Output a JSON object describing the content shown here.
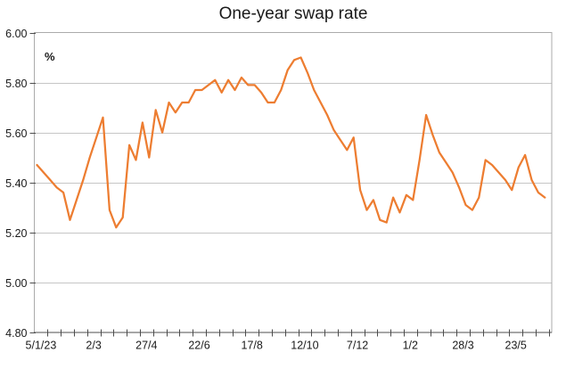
{
  "chart_data": {
    "type": "line",
    "title": "One-year swap rate",
    "unit_label": "%",
    "x_tick_labels": [
      "5/1/23",
      "2/3",
      "27/4",
      "22/6",
      "17/8",
      "12/10",
      "7/12",
      "1/2",
      "28/3",
      "23/5"
    ],
    "y_tick_labels": [
      "6.00",
      "5.80",
      "5.60",
      "5.40",
      "5.20",
      "5.00",
      "4.80"
    ],
    "ylim": [
      4.8,
      6.0
    ],
    "y_step": 0.2,
    "grid": "horizontal-major",
    "legend": "none",
    "series": [
      {
        "name": "One-year swap rate",
        "color": "#ED7D31",
        "values": [
          5.47,
          5.44,
          5.41,
          5.38,
          5.36,
          5.25,
          5.33,
          5.41,
          5.5,
          5.58,
          5.66,
          5.29,
          5.22,
          5.26,
          5.55,
          5.49,
          5.64,
          5.5,
          5.69,
          5.6,
          5.72,
          5.68,
          5.72,
          5.72,
          5.77,
          5.77,
          5.79,
          5.81,
          5.76,
          5.81,
          5.77,
          5.82,
          5.79,
          5.79,
          5.76,
          5.72,
          5.72,
          5.77,
          5.85,
          5.89,
          5.9,
          5.84,
          5.77,
          5.72,
          5.67,
          5.61,
          5.57,
          5.53,
          5.58,
          5.37,
          5.29,
          5.33,
          5.25,
          5.24,
          5.34,
          5.28,
          5.35,
          5.33,
          5.49,
          5.67,
          5.59,
          5.52,
          5.48,
          5.44,
          5.38,
          5.31,
          5.29,
          5.34,
          5.49,
          5.47,
          5.44,
          5.41,
          5.37,
          5.46,
          5.51,
          5.41,
          5.36,
          5.34
        ]
      }
    ],
    "colors": {
      "line": "#ED7D31",
      "gridline": "#C6C6C6",
      "plot_border": "#ABABAB",
      "axis": "#4D4D4D",
      "text": "#1a1a1a",
      "background": "#FFFFFF"
    }
  }
}
